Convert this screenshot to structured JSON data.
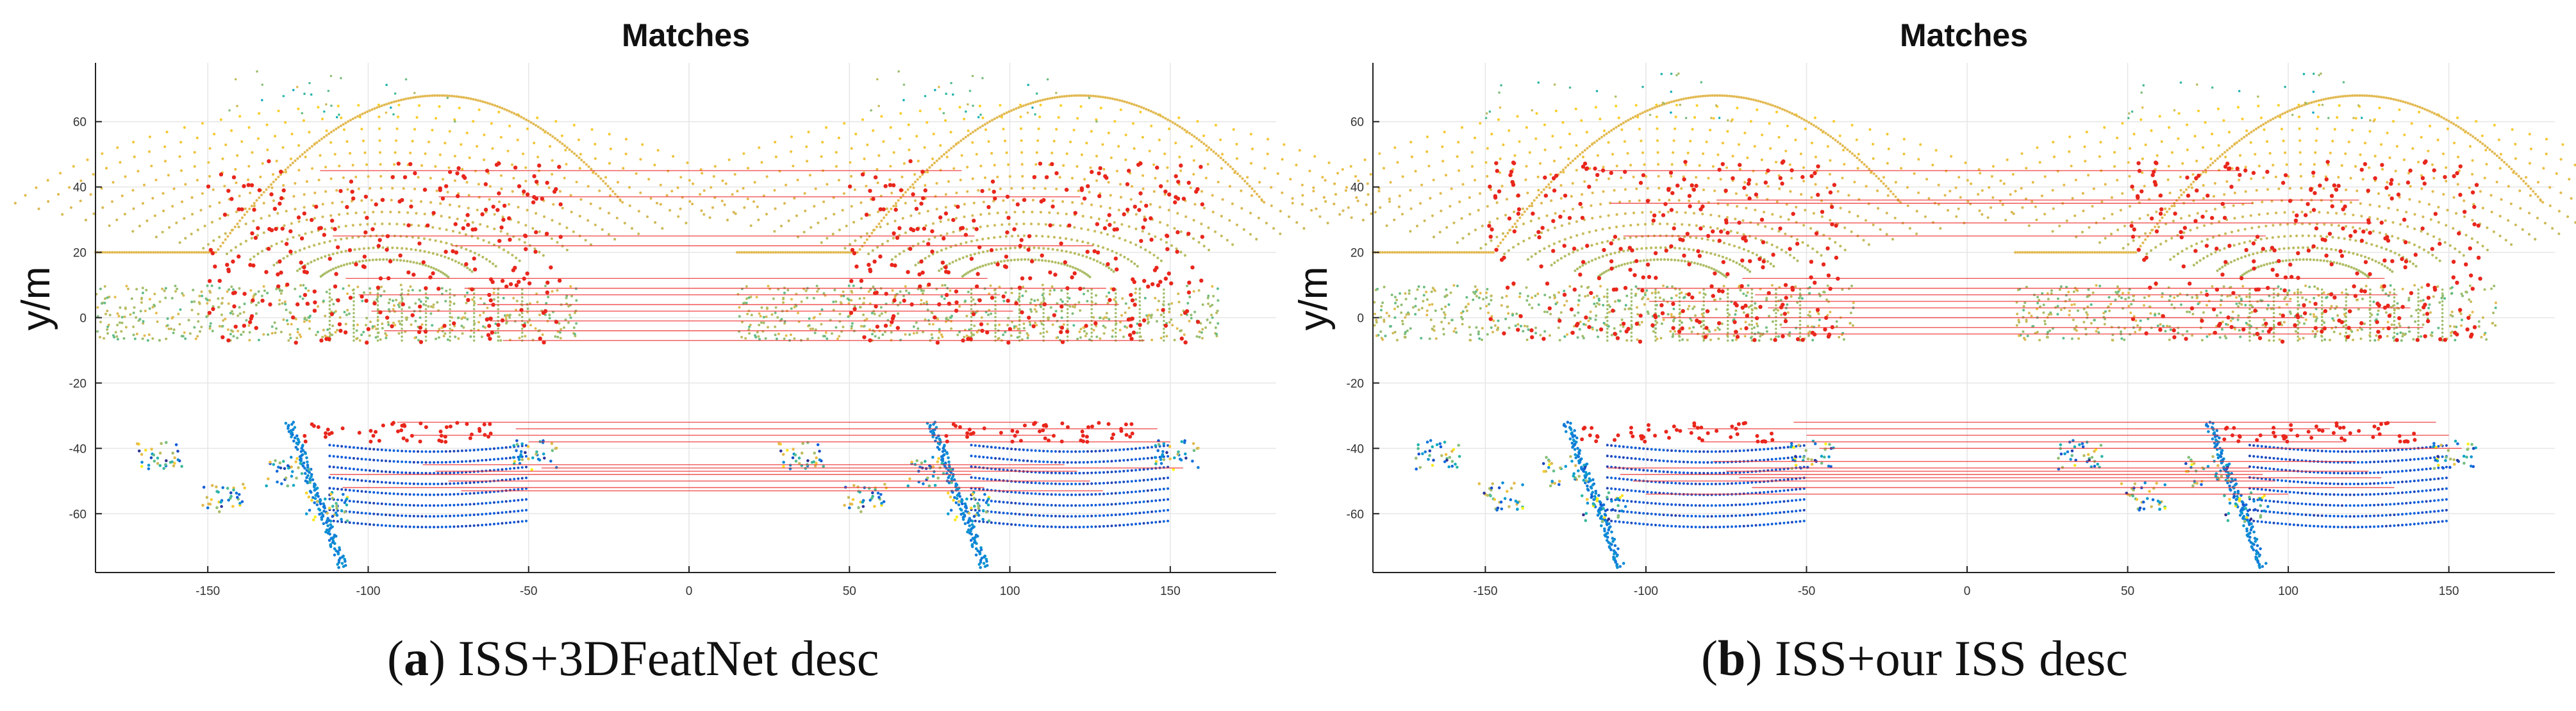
{
  "chart_data": [
    {
      "type": "scatter",
      "title": "Matches",
      "ylabel": "y/m",
      "xlabel": "",
      "xlim": [
        -185,
        183
      ],
      "ylim": [
        -78,
        78
      ],
      "xticks": [
        -150,
        -100,
        -50,
        0,
        50,
        100,
        150
      ],
      "yticks": [
        60,
        40,
        20,
        0,
        -20,
        -40,
        -60
      ],
      "grid": true,
      "caption_letter": "a",
      "caption_text": "ISS+3DFeatNet desc",
      "x_shift": 200,
      "series": [
        {
          "name": "point cloud (road, green-yellow)",
          "color_scale": "parula",
          "description": "LiDAR scan pair"
        },
        {
          "name": "keypoints",
          "color": "#e8261c"
        },
        {
          "name": "match lines",
          "color": "#ee2a2a"
        }
      ],
      "matches": [
        {
          "y1": 45,
          "y2": 45
        },
        {
          "y1": 37,
          "y2": 37
        },
        {
          "y1": 25,
          "y2": 25
        },
        {
          "y1": 22,
          "y2": 22
        },
        {
          "y1": 12,
          "y2": 12
        },
        {
          "y1": 9,
          "y2": 9
        },
        {
          "y1": 7,
          "y2": 7
        },
        {
          "y1": 4,
          "y2": 4
        },
        {
          "y1": 2,
          "y2": 2
        },
        {
          "y1": -1,
          "y2": -1
        },
        {
          "y1": -4,
          "y2": -4
        },
        {
          "y1": -7,
          "y2": -7
        },
        {
          "y1": -32,
          "y2": -32
        },
        {
          "y1": -34,
          "y2": -34
        },
        {
          "y1": -36,
          "y2": -36
        },
        {
          "y1": -38,
          "y2": -38
        },
        {
          "y1": -45,
          "y2": -45
        },
        {
          "y1": -46,
          "y2": -46
        },
        {
          "y1": -47,
          "y2": -47
        },
        {
          "y1": -48,
          "y2": -48
        },
        {
          "y1": -50,
          "y2": -50
        },
        {
          "y1": -52,
          "y2": -52
        },
        {
          "y1": -53,
          "y2": -53
        }
      ]
    },
    {
      "type": "scatter",
      "title": "Matches",
      "ylabel": "y/m",
      "xlabel": "",
      "xlim": [
        -185,
        183
      ],
      "ylim": [
        -78,
        78
      ],
      "xticks": [
        -150,
        -100,
        -50,
        0,
        50,
        100,
        150
      ],
      "yticks": [
        60,
        40,
        20,
        0,
        -20,
        -40,
        -60
      ],
      "grid": true,
      "caption_letter": "b",
      "caption_text": "ISS+our ISS desc",
      "x_shift": 200,
      "series": [
        {
          "name": "point cloud (road, green-yellow)",
          "color_scale": "parula",
          "description": "LiDAR scan pair"
        },
        {
          "name": "keypoints",
          "color": "#e8261c"
        },
        {
          "name": "match lines",
          "color": "#ee2a2a"
        }
      ],
      "matches": [
        {
          "y1": 45,
          "y2": 45
        },
        {
          "y1": 36,
          "y2": 36
        },
        {
          "y1": 35,
          "y2": 35
        },
        {
          "y1": 29,
          "y2": 29
        },
        {
          "y1": 25,
          "y2": 25
        },
        {
          "y1": 12,
          "y2": 12
        },
        {
          "y1": 9,
          "y2": 9
        },
        {
          "y1": 7,
          "y2": 7
        },
        {
          "y1": 5,
          "y2": 5
        },
        {
          "y1": 3,
          "y2": 3
        },
        {
          "y1": 0,
          "y2": 0
        },
        {
          "y1": -3,
          "y2": -3
        },
        {
          "y1": -5,
          "y2": -5
        },
        {
          "y1": -32,
          "y2": -32
        },
        {
          "y1": -34,
          "y2": -34
        },
        {
          "y1": -36,
          "y2": -36
        },
        {
          "y1": -38,
          "y2": -38
        },
        {
          "y1": -40,
          "y2": -40
        },
        {
          "y1": -44,
          "y2": -44
        },
        {
          "y1": -46,
          "y2": -46
        },
        {
          "y1": -47,
          "y2": -47
        },
        {
          "y1": -48,
          "y2": -48
        },
        {
          "y1": -49,
          "y2": -49
        },
        {
          "y1": -50,
          "y2": -50
        },
        {
          "y1": -52,
          "y2": -52
        },
        {
          "y1": -54,
          "y2": -54
        }
      ]
    }
  ]
}
